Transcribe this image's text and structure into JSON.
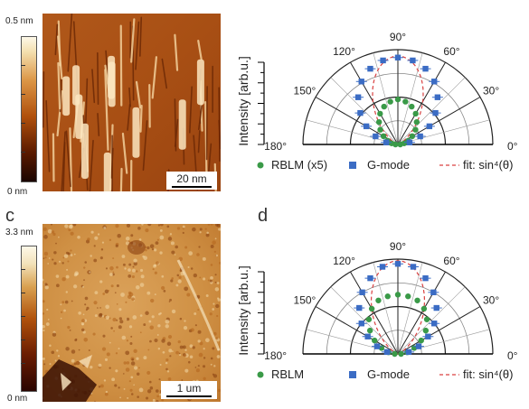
{
  "panel_letters": {
    "c": "c",
    "d": "d"
  },
  "afm_top": {
    "colorbar_max": "0.5 nm",
    "colorbar_min": "0 nm",
    "scale_label": "20 nm"
  },
  "afm_bottom": {
    "colorbar_max": "3.3 nm",
    "colorbar_min": "0 nm",
    "scale_label": "1 um"
  },
  "chart_data": [
    {
      "type": "scatter",
      "polar": true,
      "ylabel": "Intensity [arb.u.]",
      "angle_ticks": [
        "180°",
        "150°",
        "120°",
        "90°",
        "60°",
        "30°",
        "0°"
      ],
      "series": [
        {
          "name": "RBLM (x5)",
          "marker": "circle",
          "color": "#3a9a48",
          "angle_deg": [
            0,
            10,
            20,
            30,
            40,
            50,
            60,
            70,
            80,
            90,
            100,
            110,
            120,
            130,
            140,
            150,
            160,
            170,
            180
          ],
          "r": [
            0.03,
            0.08,
            0.14,
            0.21,
            0.29,
            0.37,
            0.45,
            0.51,
            0.55,
            0.57,
            0.55,
            0.51,
            0.45,
            0.37,
            0.29,
            0.21,
            0.14,
            0.08,
            0.03
          ]
        },
        {
          "name": "G-mode",
          "marker": "square",
          "color": "#3b6cc4",
          "angle_deg": [
            10,
            20,
            30,
            40,
            50,
            60,
            70,
            80,
            90,
            100,
            110,
            120,
            130,
            140,
            150,
            160,
            170
          ],
          "r": [
            0.15,
            0.3,
            0.46,
            0.62,
            0.78,
            0.92,
            1.02,
            1.08,
            1.1,
            1.08,
            1.02,
            0.92,
            0.78,
            0.62,
            0.46,
            0.3,
            0.15
          ]
        }
      ],
      "fit": {
        "name": "fit: sin⁴(θ)",
        "color": "#d94040",
        "amplitude": 1.12
      },
      "legend": "bottom"
    },
    {
      "type": "scatter",
      "polar": true,
      "ylabel": "Intensity [arb.u.]",
      "angle_ticks": [
        "180°",
        "150°",
        "120°",
        "90°",
        "60°",
        "30°",
        "0°"
      ],
      "series": [
        {
          "name": "RBLM",
          "marker": "circle",
          "color": "#3a9a48",
          "angle_deg": [
            0,
            10,
            20,
            30,
            40,
            50,
            60,
            70,
            80,
            90,
            100,
            110,
            120,
            130,
            140,
            150,
            160,
            170,
            180
          ],
          "r": [
            0.04,
            0.12,
            0.22,
            0.34,
            0.46,
            0.57,
            0.66,
            0.72,
            0.74,
            0.75,
            0.74,
            0.72,
            0.66,
            0.57,
            0.46,
            0.34,
            0.22,
            0.12,
            0.04
          ]
        },
        {
          "name": "G-mode",
          "marker": "square",
          "color": "#3b6cc4",
          "angle_deg": [
            10,
            20,
            30,
            40,
            50,
            60,
            70,
            80,
            90,
            100,
            110,
            120,
            130,
            140,
            150,
            160,
            170
          ],
          "r": [
            0.14,
            0.28,
            0.44,
            0.6,
            0.76,
            0.9,
            1.02,
            1.12,
            1.14,
            1.12,
            1.02,
            0.9,
            0.76,
            0.6,
            0.44,
            0.28,
            0.14
          ]
        }
      ],
      "fit": {
        "name": "fit: sin⁴(θ)",
        "color": "#d94040",
        "amplitude": 1.18
      },
      "legend": "bottom"
    }
  ]
}
